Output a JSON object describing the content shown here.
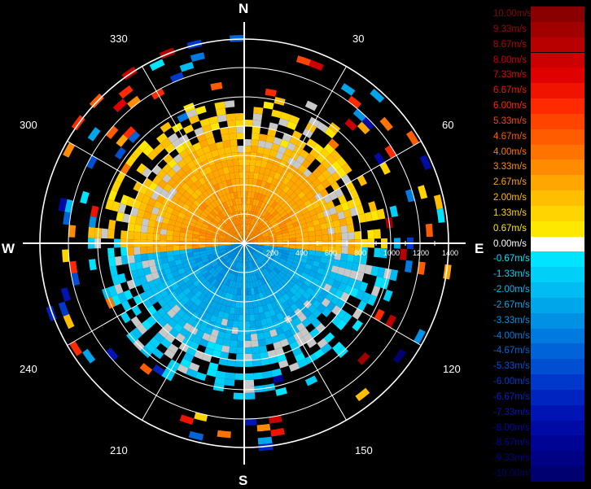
{
  "compass": {
    "north": "N",
    "south": "S",
    "east": "E",
    "west": "W"
  },
  "bearings": [
    "30",
    "60",
    "120",
    "150",
    "210",
    "240",
    "300",
    "330"
  ],
  "range_labels": [
    "200",
    "400",
    "600",
    "800",
    "1000",
    "1200",
    "1400"
  ],
  "legend": {
    "entries": [
      {
        "label": "10.00m/s",
        "color": "#8a0000"
      },
      {
        "label": "9.33m/s",
        "color": "#a00000"
      },
      {
        "label": "8.67m/s",
        "color": "#b80000"
      },
      {
        "label": "8.00m/s",
        "color": "#cc0000"
      },
      {
        "label": "7.33m/s",
        "color": "#e00000"
      },
      {
        "label": "6.67m/s",
        "color": "#f01400"
      },
      {
        "label": "6.00m/s",
        "color": "#ff2a00"
      },
      {
        "label": "5.33m/s",
        "color": "#ff4400"
      },
      {
        "label": "4.67m/s",
        "color": "#ff5c00"
      },
      {
        "label": "4.00m/s",
        "color": "#ff7400"
      },
      {
        "label": "3.33m/s",
        "color": "#ff8c00"
      },
      {
        "label": "2.67m/s",
        "color": "#ffa600"
      },
      {
        "label": "2.00m/s",
        "color": "#ffbe00"
      },
      {
        "label": "1.33m/s",
        "color": "#ffd400"
      },
      {
        "label": "0.67m/s",
        "color": "#ffe800"
      },
      {
        "label": "0.00m/s",
        "color": "#ffffff"
      },
      {
        "label": "-0.67m/s",
        "color": "#00e4ff"
      },
      {
        "label": "-1.33m/s",
        "color": "#00d0f8"
      },
      {
        "label": "-2.00m/s",
        "color": "#00bcf0"
      },
      {
        "label": "-2.67m/s",
        "color": "#00a6ea"
      },
      {
        "label": "-3.33m/s",
        "color": "#0090e4"
      },
      {
        "label": "-4.00m/s",
        "color": "#007ade"
      },
      {
        "label": "-4.67m/s",
        "color": "#0064d8"
      },
      {
        "label": "-5.33m/s",
        "color": "#004ed2"
      },
      {
        "label": "-6.00m/s",
        "color": "#0038cc"
      },
      {
        "label": "-6.67m/s",
        "color": "#0024c0"
      },
      {
        "label": "-7.33m/s",
        "color": "#0014b4"
      },
      {
        "label": "-8.00m/s",
        "color": "#000aa4"
      },
      {
        "label": "-8.67m/s",
        "color": "#000494"
      },
      {
        "label": "-9.33m/s",
        "color": "#000284"
      },
      {
        "label": "-10.00m/s",
        "color": "#000070"
      }
    ]
  }
}
